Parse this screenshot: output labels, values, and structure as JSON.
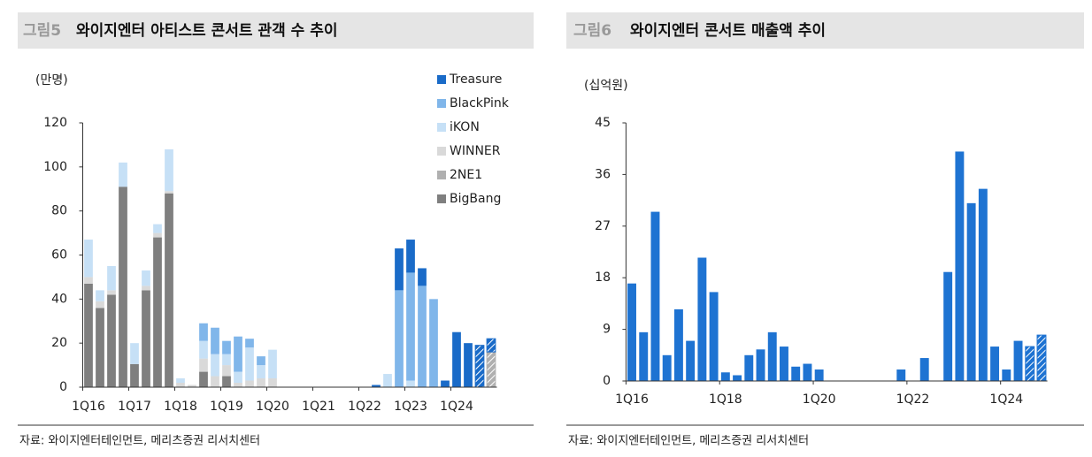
{
  "chart_data": [
    {
      "type": "bar",
      "stacked": true,
      "figure_label": "그림5",
      "title": "와이지엔터 아티스트 콘서트 관객 수 추이",
      "unit_label": "(만명)",
      "source": "자료: 와이지엔터테인먼트, 메리츠증권 리서치센터",
      "categories": [
        "1Q16",
        null,
        null,
        null,
        "1Q17",
        null,
        null,
        null,
        "1Q18",
        null,
        null,
        null,
        "1Q19",
        null,
        null,
        null,
        "1Q20",
        null,
        null,
        null,
        "1Q21",
        null,
        null,
        null,
        "1Q22",
        null,
        null,
        null,
        "1Q23",
        null,
        null,
        null,
        "1Q24",
        null,
        null,
        null
      ],
      "series": [
        {
          "name": "Treasure",
          "color": "#1a6bc8",
          "values": [
            0,
            0,
            0,
            0,
            0,
            0,
            0,
            0,
            0,
            0,
            0,
            0,
            0,
            0,
            0,
            0,
            0,
            0,
            0,
            0,
            0,
            0,
            0,
            0,
            0,
            1,
            0,
            19,
            15,
            8,
            0,
            3,
            25,
            20,
            19,
            6
          ]
        },
        {
          "name": "BlackPink",
          "color": "#80b6ea",
          "values": [
            0,
            0,
            0,
            0,
            0,
            0,
            0,
            0,
            0,
            0,
            8,
            12,
            6,
            16,
            4,
            4,
            0,
            0,
            0,
            0,
            0,
            0,
            0,
            0,
            0,
            0,
            0,
            44,
            49,
            46,
            40,
            0,
            0,
            0,
            0,
            0
          ]
        },
        {
          "name": "iKON",
          "color": "#c6e0f6",
          "values": [
            17,
            5,
            11,
            11,
            9.5,
            7,
            4,
            19,
            2,
            0,
            8,
            10,
            5,
            5,
            15,
            6,
            13,
            0,
            0,
            0,
            0,
            0,
            0,
            0,
            0,
            0,
            6,
            0,
            3,
            0,
            0,
            0,
            0,
            0,
            0,
            0
          ]
        },
        {
          "name": "WINNER",
          "color": "#d9d9d9",
          "values": [
            3,
            3,
            2,
            0,
            0,
            2,
            2,
            1,
            2,
            1,
            6,
            5,
            5,
            2,
            3,
            4,
            4,
            0,
            0,
            0,
            0,
            0,
            0,
            0,
            0,
            0,
            0,
            0,
            0,
            0,
            0,
            0,
            0,
            0,
            0,
            0
          ]
        },
        {
          "name": "2NE1",
          "color": "#b0b0b0",
          "values": [
            0,
            0,
            0,
            0,
            0,
            0,
            0,
            0,
            0,
            0,
            0,
            0,
            0,
            0,
            0,
            0,
            0,
            0,
            0,
            0,
            0,
            0,
            0,
            0,
            0,
            0,
            0,
            0,
            0,
            0,
            0,
            0,
            0,
            0,
            0,
            16
          ]
        },
        {
          "name": "BigBang",
          "color": "#7f7f7f",
          "values": [
            47,
            36,
            42,
            91,
            10.5,
            44,
            68,
            88,
            0,
            0,
            7,
            0,
            5,
            0,
            0,
            0,
            0,
            0,
            0,
            0,
            0,
            0,
            0,
            0,
            0,
            0,
            0,
            0,
            0,
            0,
            0,
            0,
            0,
            0,
            0,
            0
          ]
        }
      ],
      "hatched": [
        false,
        false,
        false,
        false,
        false,
        false,
        false,
        false,
        false,
        false,
        false,
        false,
        false,
        false,
        false,
        false,
        false,
        false,
        false,
        false,
        false,
        false,
        false,
        false,
        false,
        false,
        false,
        false,
        false,
        false,
        false,
        false,
        false,
        false,
        true,
        true
      ],
      "ylim": [
        0,
        120
      ],
      "yticks": [
        0,
        20,
        40,
        60,
        80,
        100,
        120
      ],
      "grid": false
    },
    {
      "type": "bar",
      "figure_label": "그림6",
      "title": "와이지엔터 콘서트 매출액 추이",
      "unit_label": "(십억원)",
      "source": "자료: 와이지엔터테인먼트, 메리츠증권 리서치센터",
      "categories": [
        "1Q16",
        null,
        null,
        null,
        null,
        null,
        null,
        null,
        "1Q18",
        null,
        null,
        null,
        null,
        null,
        null,
        null,
        "1Q20",
        null,
        null,
        null,
        null,
        null,
        null,
        null,
        "1Q22",
        null,
        null,
        null,
        null,
        null,
        null,
        null,
        "1Q24",
        null,
        null,
        null
      ],
      "values": [
        17,
        8.5,
        29.5,
        4.5,
        12.5,
        7,
        21.5,
        15.5,
        1.5,
        1,
        4.5,
        5.5,
        8.5,
        6,
        2.5,
        3,
        2,
        0,
        0,
        0,
        0,
        0,
        0,
        2,
        0,
        4,
        0,
        19,
        40,
        31,
        33.5,
        6,
        2,
        7,
        6,
        8
      ],
      "color": "#1e73d2",
      "hatched": [
        false,
        false,
        false,
        false,
        false,
        false,
        false,
        false,
        false,
        false,
        false,
        false,
        false,
        false,
        false,
        false,
        false,
        false,
        false,
        false,
        false,
        false,
        false,
        false,
        false,
        false,
        false,
        false,
        false,
        false,
        false,
        false,
        false,
        false,
        true,
        true
      ],
      "ylim": [
        0,
        45
      ],
      "yticks": [
        0,
        9,
        18,
        27,
        36,
        45
      ],
      "grid": false
    }
  ]
}
